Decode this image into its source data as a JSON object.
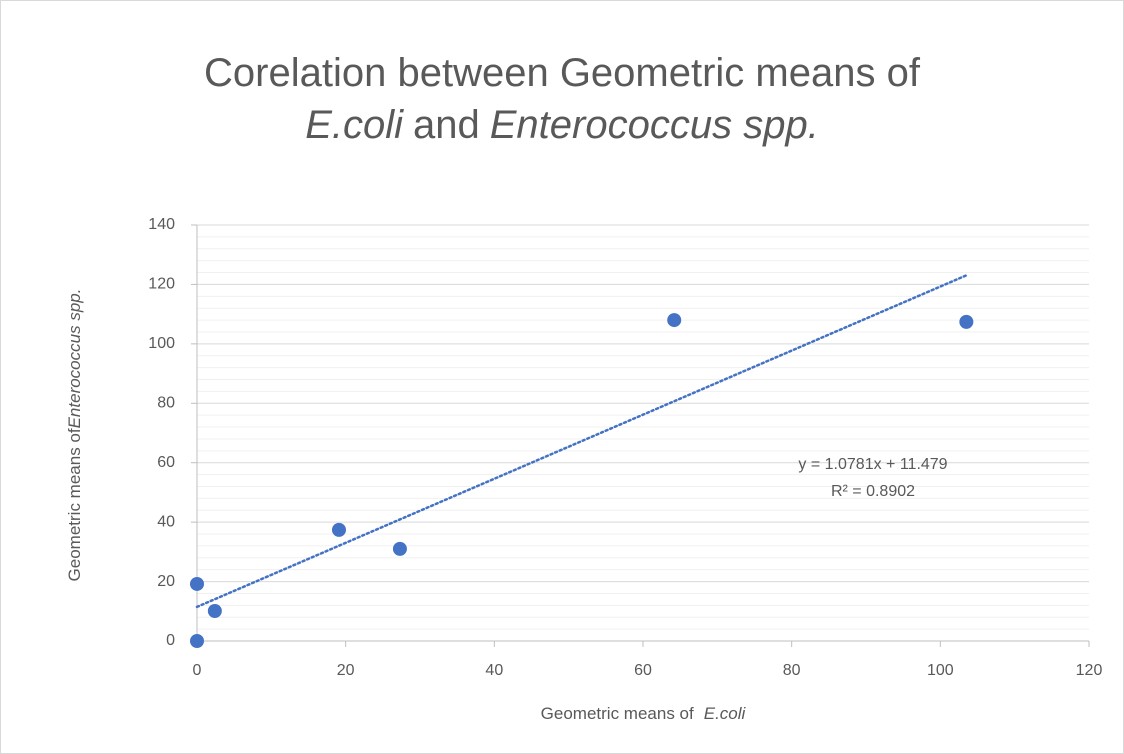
{
  "chart_data": {
    "type": "scatter",
    "title_lines": [
      [
        {
          "text": "Corelation between Geometric means of",
          "italic": false
        }
      ],
      [
        {
          "text": "E.coli",
          "italic": true
        },
        {
          "text": "and",
          "italic": false
        },
        {
          "text": "Enterococcus spp.",
          "italic": true
        }
      ]
    ],
    "x_label": [
      {
        "text": "Geometric means of",
        "italic": false
      },
      {
        "text": "E.coli",
        "italic": true
      }
    ],
    "y_label": [
      {
        "text": "Geometric means of",
        "italic": false
      },
      {
        "text": "Enterococcus spp.",
        "italic": true
      }
    ],
    "series": [
      {
        "name": "Enterococcus spp.",
        "color": "#4472c4",
        "x": [
          0,
          0,
          2.4,
          19.1,
          27.3,
          64.2,
          103.5
        ],
        "values": [
          0,
          19.2,
          10.1,
          37.4,
          31.0,
          108.0,
          107.4
        ]
      }
    ],
    "trendline": {
      "slope": 1.0781,
      "intercept": 11.479,
      "color": "#4472c4",
      "equation_label": "y = 1.0781x + 11.479",
      "r2_label": "R² = 0.8902"
    },
    "xlim": [
      0,
      120
    ],
    "xticks": [
      0,
      20,
      40,
      60,
      80,
      100,
      120
    ],
    "ylim": [
      0,
      140
    ],
    "yticks": [
      0,
      20,
      40,
      60,
      80,
      100,
      120,
      140
    ],
    "y_minor_ticks": [
      4,
      8,
      12,
      16,
      24,
      28,
      32,
      36,
      44,
      48,
      52,
      56,
      64,
      68,
      72,
      76,
      84,
      88,
      92,
      96,
      104,
      108,
      112,
      116,
      124,
      128,
      132,
      136
    ],
    "grid": true
  }
}
